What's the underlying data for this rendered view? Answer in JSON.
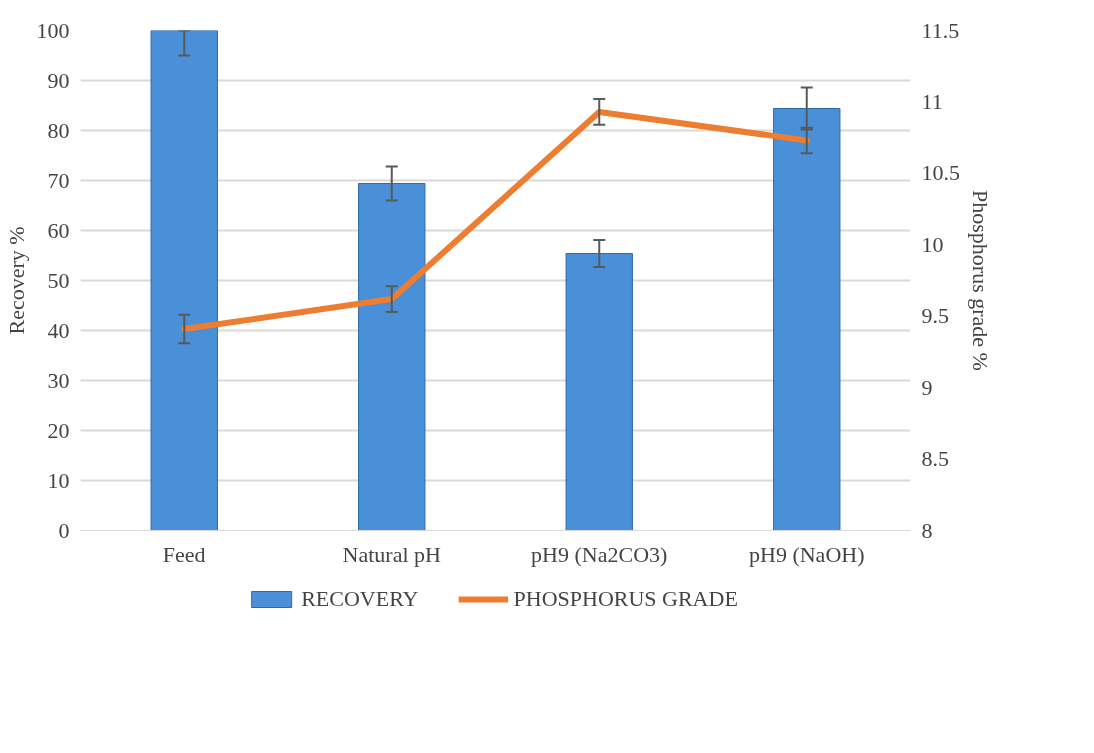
{
  "chart_data": {
    "type": "bar",
    "categories": [
      "Feed",
      "Natural pH",
      "pH9 (Na2CO3)",
      "pH9 (NaOH)"
    ],
    "ylabel": "Recovery %",
    "y2label": "Phosphorus grade %",
    "ylim": [
      0,
      100
    ],
    "yticks": [
      0,
      10,
      20,
      30,
      40,
      50,
      60,
      70,
      80,
      90,
      100
    ],
    "y2lim": [
      8,
      11.5
    ],
    "y2ticks": [
      8,
      8.5,
      9,
      9.5,
      10,
      10.5,
      11,
      11.5
    ],
    "grid": "y",
    "legend": "bottom",
    "series": [
      {
        "name": "RECOVERY",
        "color": "#4a90d9",
        "values": [
          100,
          69.4,
          55.4,
          84.4
        ],
        "errors": [
          [
            95,
            100
          ],
          3.4,
          2.7,
          4.2
        ]
      },
      {
        "name": "PHOSPHORUS GRADE",
        "type": "line",
        "axis": "y2",
        "color": "#ed7d31",
        "values": [
          9.41,
          9.62,
          10.93,
          10.73
        ],
        "errors": [
          0.1,
          0.09,
          0.09,
          0.09
        ]
      }
    ]
  }
}
